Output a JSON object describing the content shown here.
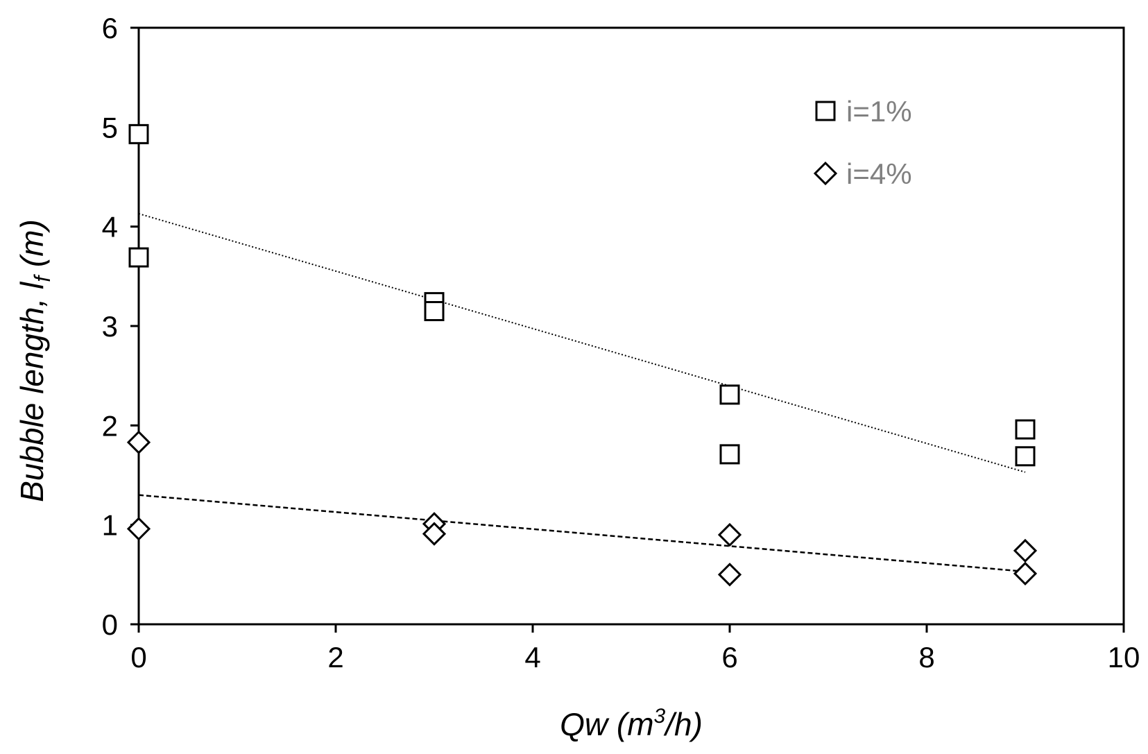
{
  "chart_data": {
    "type": "scatter",
    "title": "",
    "xlabel": {
      "base": "Qw (m",
      "sup": "3",
      "tail": "/h)"
    },
    "ylabel": {
      "base": "Bubble length, l",
      "sub": "f",
      "tail": " (m)"
    },
    "xlim": [
      0,
      10
    ],
    "ylim": [
      0,
      6
    ],
    "xticks": [
      "0",
      "2",
      "4",
      "6",
      "8",
      "10"
    ],
    "yticks": [
      "0",
      "1",
      "2",
      "3",
      "4",
      "5",
      "6"
    ],
    "grid": false,
    "legend_position": "top-right",
    "series": [
      {
        "name": "i=1%",
        "marker": "square",
        "points": [
          [
            0,
            4.93
          ],
          [
            0,
            3.69
          ],
          [
            3,
            3.24
          ],
          [
            3,
            3.15
          ],
          [
            6,
            2.31
          ],
          [
            6,
            1.71
          ],
          [
            9,
            1.96
          ],
          [
            9,
            1.69
          ]
        ],
        "trendline": {
          "style": "dotted",
          "x": [
            0,
            9
          ],
          "y": [
            4.13,
            1.53
          ]
        }
      },
      {
        "name": "i=4%",
        "marker": "diamond",
        "points": [
          [
            0,
            1.83
          ],
          [
            0,
            0.96
          ],
          [
            3,
            1.01
          ],
          [
            3,
            0.91
          ],
          [
            6,
            0.9
          ],
          [
            6,
            0.5
          ],
          [
            9,
            0.74
          ],
          [
            9,
            0.51
          ]
        ],
        "trendline": {
          "style": "dashed",
          "x": [
            0,
            9
          ],
          "y": [
            1.3,
            0.53
          ]
        }
      }
    ]
  }
}
